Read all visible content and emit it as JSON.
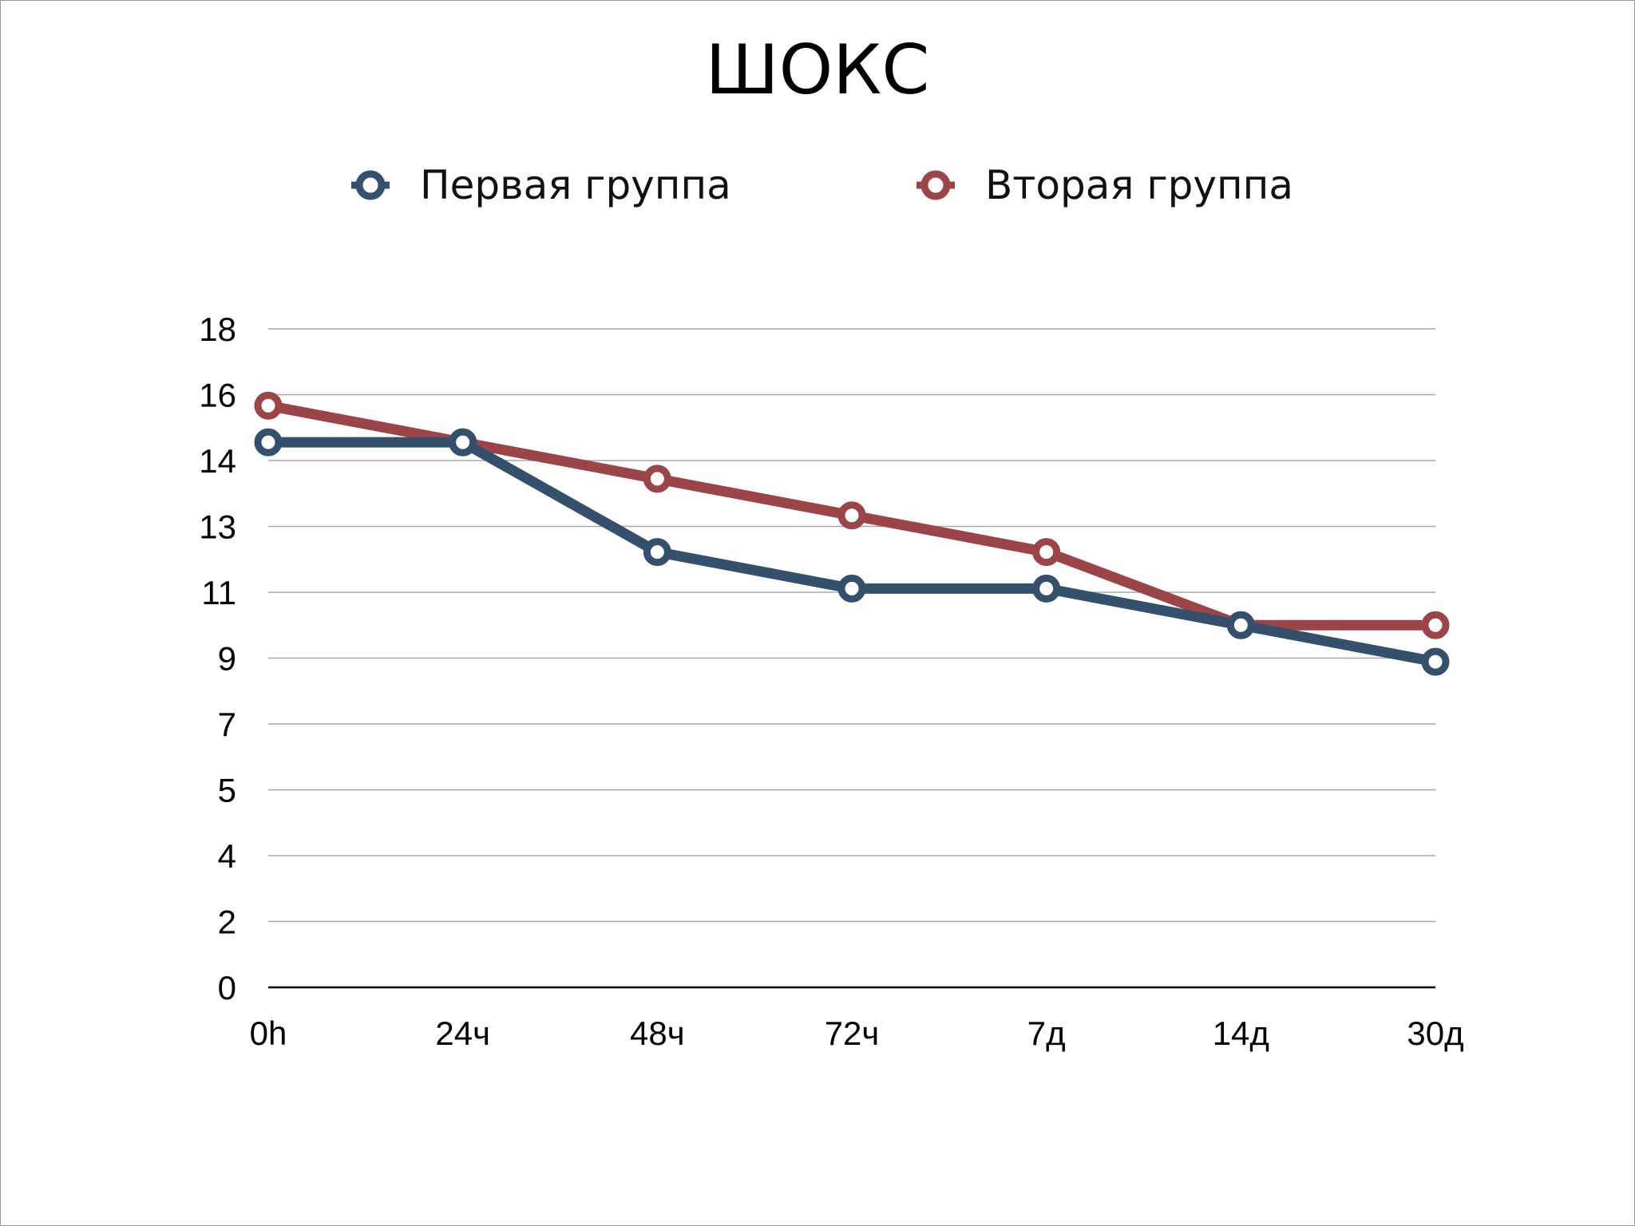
{
  "chart_data": {
    "type": "line",
    "title": "ШОКС",
    "categories": [
      "0h",
      "24ч",
      "48ч",
      "72ч",
      "7д",
      "14д",
      "30д"
    ],
    "y_ticks": [
      "0",
      "2",
      "4",
      "5",
      "7",
      "9",
      "11",
      "13",
      "14",
      "16",
      "18"
    ],
    "ylim": [
      0,
      18
    ],
    "grid": true,
    "legend_position": "top",
    "series": [
      {
        "name": "Первая группа",
        "color": "#34506c",
        "values": [
          14.9,
          14.9,
          11.9,
          10.9,
          10.9,
          9.9,
          8.9
        ]
      },
      {
        "name": "Вторая группа",
        "color": "#9b4548",
        "values": [
          15.9,
          14.9,
          13.9,
          12.9,
          11.9,
          9.9,
          9.9
        ]
      }
    ]
  }
}
